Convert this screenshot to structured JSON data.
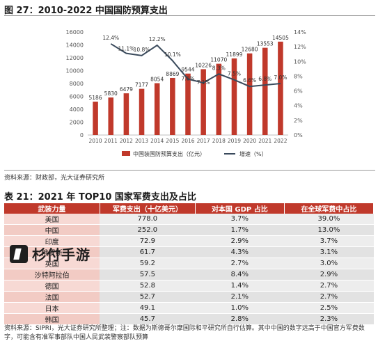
{
  "figure": {
    "title": "图 27：2010-2022 中国国防预算支出",
    "source": "资料来源：财政部，光大证券研究所"
  },
  "chart_data": {
    "type": "bar",
    "categories": [
      "2010",
      "2011",
      "2012",
      "2013",
      "2014",
      "2015",
      "2016",
      "2017",
      "2018",
      "2019",
      "2020",
      "2021",
      "2022"
    ],
    "series": [
      {
        "name": "中国装国防预算支出（亿元）",
        "type": "bar",
        "axis": "left",
        "values": [
          5186,
          5830,
          6479,
          7177,
          8054,
          8869,
          9544,
          10226,
          11070,
          11899,
          12680,
          13553,
          14505
        ],
        "labels": [
          "5186",
          "5830",
          "6479",
          "7177",
          "8054",
          "8869",
          "9544",
          "10226",
          "11070",
          "11899",
          "12680",
          "13553",
          "14505"
        ],
        "color": "#c0392b"
      },
      {
        "name": "增速（%）",
        "type": "line",
        "axis": "right",
        "values": [
          null,
          12.4,
          11.1,
          10.8,
          12.2,
          10.1,
          7.6,
          7.1,
          8.3,
          7.5,
          6.6,
          6.8,
          7.0
        ],
        "labels": [
          "",
          "12.4%",
          "11.1%",
          "10.8%",
          "12.2%",
          "10.1%",
          "7.6%",
          "7.1%",
          "8.3%",
          "7.5%",
          "6.6%",
          "6.8%",
          "7.0%"
        ],
        "color": "#3a4a5c"
      }
    ],
    "ylim_left": [
      0,
      16000
    ],
    "yticks_left": [
      "0",
      "2000",
      "4000",
      "6000",
      "8000",
      "10000",
      "12000",
      "14000",
      "16000"
    ],
    "ylim_right": [
      0,
      14
    ],
    "yticks_right": [
      "0%",
      "2%",
      "4%",
      "6%",
      "8%",
      "10%",
      "12%",
      "14%"
    ],
    "grid": false,
    "legend_position": "bottom"
  },
  "table": {
    "title": "表 21：2021 年 TOP10 国家军费支出及占比",
    "headers": [
      "武装力量",
      "军费支出（十亿美元）",
      "对本国 GDP 占比",
      "在全球军费中占比"
    ],
    "rows": [
      [
        "美国",
        "778.0",
        "3.7%",
        "39.0%"
      ],
      [
        "中国",
        "252.0",
        "1.7%",
        "13.0%"
      ],
      [
        "印度",
        "72.9",
        "2.9%",
        "3.7%"
      ],
      [
        "俄罗斯",
        "61.7",
        "4.3%",
        "3.1%"
      ],
      [
        "英国",
        "59.2",
        "2.7%",
        "3.0%"
      ],
      [
        "沙特阿拉伯",
        "57.5",
        "8.4%",
        "2.9%"
      ],
      [
        "德国",
        "52.8",
        "1.4%",
        "2.7%"
      ],
      [
        "法国",
        "52.7",
        "2.1%",
        "2.7%"
      ],
      [
        "日本",
        "49.1",
        "1.0%",
        "2.5%"
      ],
      [
        "韩国",
        "45.7",
        "2.8%",
        "2.3%"
      ]
    ],
    "note": "资料来源：SIPRI，光大证券研究所整理；注：数据为斯德哥尔摩国际和平研究所自行估算。其中中国的数字远高于中国官方军费数字，可能含有准军事部队中国人民武装警察部队预算"
  },
  "watermark": {
    "text": "杉付手游",
    "icon": "brand-logo-icon"
  }
}
